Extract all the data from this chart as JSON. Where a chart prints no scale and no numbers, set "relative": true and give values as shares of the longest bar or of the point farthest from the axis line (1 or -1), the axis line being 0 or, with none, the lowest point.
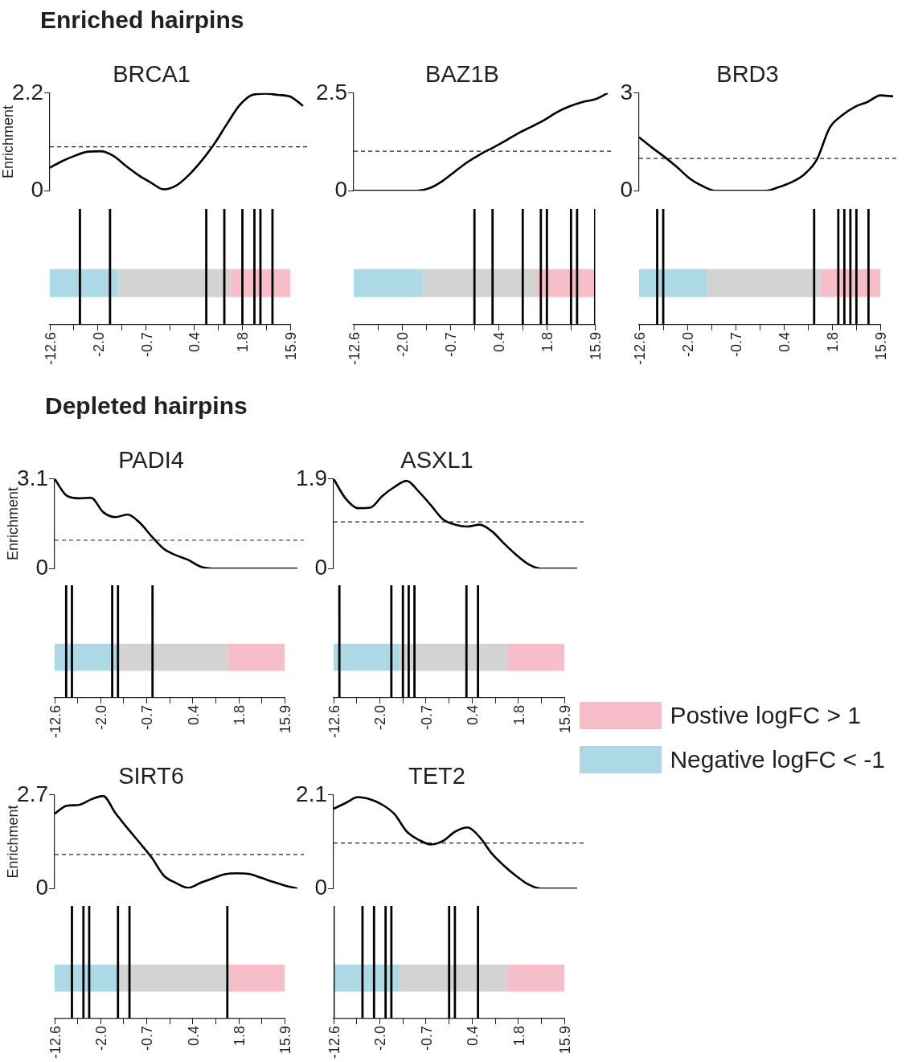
{
  "chart_data": [
    {
      "type": "line",
      "title": "BRCA1",
      "annotations": [
        "Enriched hairpins"
      ],
      "ylabel": "Enrichment",
      "tick_labels": "y",
      "grid": false,
      "legend": false,
      "marker": "none",
      "line_style": "solid",
      "categories": [
        null,
        null,
        null,
        null,
        null,
        null,
        null,
        null,
        null,
        null,
        null,
        null,
        null,
        null,
        null,
        null,
        null,
        null,
        null,
        null,
        null
      ],
      "series": [
        {
          "color": "#000000",
          "values": [
            0.52,
            0.67,
            0.79,
            0.88,
            0.89,
            0.79,
            0.56,
            0.35,
            0.18,
            0.03,
            0.12,
            0.36,
            0.68,
            1.06,
            1.51,
            1.93,
            2.16,
            2.19,
            2.16,
            2.12,
            1.91
          ]
        }
      ],
      "ylim": [
        0,
        2.2
      ],
      "yticks": [
        0,
        2.2
      ],
      "ref_lines": [
        {
          "axis": "y",
          "value": 0.99,
          "line_style": "dashed"
        }
      ]
    },
    {
      "type": "bar",
      "relative": true,
      "tick_labels": "x",
      "legend": false,
      "categories": [
        "-12.6",
        null,
        null,
        null,
        null,
        null,
        null,
        null,
        "-2.0",
        null,
        null,
        null,
        null,
        null,
        null,
        null,
        "-0.7",
        null,
        null,
        null,
        null,
        null,
        null,
        null,
        "0.4",
        null,
        null,
        null,
        null,
        null,
        null,
        null,
        "1.8",
        null,
        null,
        null,
        null,
        null,
        null,
        null,
        "15.9"
      ],
      "series": [
        {
          "color": "#000000",
          "values": [
            null,
            null,
            null,
            null,
            null,
            1,
            null,
            null,
            null,
            null,
            1,
            null,
            null,
            null,
            null,
            null,
            null,
            null,
            null,
            null,
            null,
            null,
            null,
            null,
            null,
            null,
            1,
            null,
            null,
            1,
            null,
            null,
            1,
            null,
            1,
            1,
            null,
            1,
            null,
            null,
            null
          ]
        }
      ]
    },
    {
      "type": "bar",
      "orientation": "horizontal",
      "stacked": true,
      "relative": true,
      "tick_labels": false,
      "legend": false,
      "categories": [
        null
      ],
      "series": [
        {
          "color": "#add8e6",
          "values": [
            0.283
          ]
        },
        {
          "color": "#d3d3d3",
          "values": [
            0.467
          ]
        },
        {
          "color": "#f7bdc9",
          "values": [
            0.25
          ]
        }
      ]
    },
    {
      "type": "line",
      "title": "BAZ1B",
      "tick_labels": "y",
      "grid": false,
      "legend": false,
      "marker": "none",
      "line_style": "solid",
      "categories": [
        null,
        null,
        null,
        null,
        null,
        null,
        null,
        null,
        null,
        null,
        null,
        null,
        null,
        null,
        null,
        null,
        null,
        null,
        null,
        null,
        null
      ],
      "series": [
        {
          "color": "#000000",
          "values": [
            0,
            0,
            0,
            0,
            0,
            0,
            0.07,
            0.25,
            0.5,
            0.74,
            0.94,
            1.11,
            1.29,
            1.48,
            1.64,
            1.81,
            2.01,
            2.16,
            2.27,
            2.34,
            2.5
          ]
        }
      ],
      "ylim": [
        0,
        2.5
      ],
      "yticks": [
        0,
        2.5
      ],
      "ref_lines": [
        {
          "axis": "y",
          "value": 1.01,
          "line_style": "dashed"
        }
      ]
    },
    {
      "type": "bar",
      "relative": true,
      "tick_labels": "x",
      "legend": false,
      "categories": [
        "-12.6",
        null,
        null,
        null,
        null,
        null,
        null,
        null,
        "-2.0",
        null,
        null,
        null,
        null,
        null,
        null,
        null,
        "-0.7",
        null,
        null,
        null,
        null,
        null,
        null,
        null,
        "0.4",
        null,
        null,
        null,
        null,
        null,
        null,
        null,
        "1.8",
        null,
        null,
        null,
        null,
        null,
        null,
        null,
        "15.9"
      ],
      "series": [
        {
          "color": "#000000",
          "values": [
            null,
            null,
            null,
            null,
            null,
            null,
            null,
            null,
            null,
            null,
            null,
            null,
            null,
            null,
            null,
            null,
            null,
            null,
            null,
            null,
            1,
            null,
            null,
            1,
            null,
            null,
            null,
            null,
            1,
            null,
            null,
            1,
            1,
            null,
            null,
            null,
            1,
            1,
            null,
            null,
            1
          ]
        }
      ]
    },
    {
      "type": "bar",
      "orientation": "horizontal",
      "stacked": true,
      "relative": true,
      "tick_labels": false,
      "legend": false,
      "categories": [
        null
      ],
      "series": [
        {
          "color": "#add8e6",
          "values": [
            0.287
          ]
        },
        {
          "color": "#d3d3d3",
          "values": [
            0.472
          ]
        },
        {
          "color": "#f7bdc9",
          "values": [
            0.241
          ]
        }
      ]
    },
    {
      "type": "line",
      "title": "BRD3",
      "tick_labels": "y",
      "grid": false,
      "legend": false,
      "marker": "none",
      "line_style": "solid",
      "categories": [
        null,
        null,
        null,
        null,
        null,
        null,
        null,
        null,
        null,
        null,
        null,
        null,
        null,
        null,
        null,
        null,
        null,
        null,
        null,
        null,
        null
      ],
      "series": [
        {
          "color": "#000000",
          "values": [
            1.64,
            1.33,
            1.04,
            0.72,
            0.37,
            0.14,
            0,
            0,
            0,
            0,
            0,
            0.11,
            0.26,
            0.5,
            0.96,
            1.93,
            2.32,
            2.58,
            2.73,
            2.93,
            2.9
          ]
        }
      ],
      "ylim": [
        0,
        3
      ],
      "yticks": [
        0,
        3
      ],
      "ref_lines": [
        {
          "axis": "y",
          "value": 0.99,
          "line_style": "dashed"
        }
      ]
    },
    {
      "type": "bar",
      "relative": true,
      "tick_labels": "x",
      "legend": false,
      "categories": [
        "-12.6",
        null,
        null,
        null,
        null,
        null,
        null,
        null,
        "-2.0",
        null,
        null,
        null,
        null,
        null,
        null,
        null,
        "-0.7",
        null,
        null,
        null,
        null,
        null,
        null,
        null,
        "0.4",
        null,
        null,
        null,
        null,
        null,
        null,
        null,
        "1.8",
        null,
        null,
        null,
        null,
        null,
        null,
        null,
        "15.9"
      ],
      "series": [
        {
          "color": "#000000",
          "values": [
            null,
            null,
            null,
            1,
            1,
            null,
            null,
            null,
            null,
            null,
            null,
            null,
            null,
            null,
            null,
            null,
            null,
            null,
            null,
            null,
            null,
            null,
            null,
            null,
            null,
            null,
            null,
            null,
            null,
            1,
            null,
            null,
            null,
            1,
            1,
            1,
            1,
            null,
            1,
            null,
            null
          ]
        }
      ]
    },
    {
      "type": "bar",
      "orientation": "horizontal",
      "stacked": true,
      "relative": true,
      "tick_labels": false,
      "legend": false,
      "categories": [
        null
      ],
      "series": [
        {
          "color": "#add8e6",
          "values": [
            0.284
          ]
        },
        {
          "color": "#d3d3d3",
          "values": [
            0.468
          ]
        },
        {
          "color": "#f7bdc9",
          "values": [
            0.248
          ]
        }
      ]
    },
    {
      "type": "line",
      "title": "PADI4",
      "annotations": [
        "Depleted hairpins"
      ],
      "ylabel": "Enrichment",
      "tick_labels": "y",
      "grid": false,
      "legend": false,
      "marker": "none",
      "line_style": "solid",
      "categories": [
        null,
        null,
        null,
        null,
        null,
        null,
        null,
        null,
        null,
        null,
        null,
        null,
        null,
        null,
        null,
        null,
        null,
        null,
        null,
        null,
        null
      ],
      "series": [
        {
          "color": "#000000",
          "values": [
            3.1,
            2.52,
            2.43,
            2.45,
            1.95,
            1.78,
            1.87,
            1.59,
            1.11,
            0.68,
            0.46,
            0.3,
            0.07,
            0,
            0,
            0,
            0,
            0,
            0,
            0,
            0
          ]
        }
      ],
      "ylim": [
        0,
        3.1
      ],
      "yticks": [
        0,
        3.1
      ],
      "ref_lines": [
        {
          "axis": "y",
          "value": 0.98,
          "line_style": "dashed"
        }
      ]
    },
    {
      "type": "bar",
      "relative": true,
      "tick_labels": "x",
      "legend": false,
      "categories": [
        "-12.6",
        null,
        null,
        null,
        null,
        null,
        null,
        null,
        "-2.0",
        null,
        null,
        null,
        null,
        null,
        null,
        null,
        "-0.7",
        null,
        null,
        null,
        null,
        null,
        null,
        null,
        "0.4",
        null,
        null,
        null,
        null,
        null,
        null,
        null,
        "1.8",
        null,
        null,
        null,
        null,
        null,
        null,
        null,
        "15.9"
      ],
      "series": [
        {
          "color": "#000000",
          "values": [
            null,
            null,
            1,
            1,
            null,
            null,
            null,
            null,
            null,
            null,
            1,
            1,
            null,
            null,
            null,
            null,
            null,
            1,
            null,
            null,
            null,
            null,
            null,
            null,
            null,
            null,
            null,
            null,
            null,
            null,
            null,
            null,
            null,
            null,
            null,
            null,
            null,
            null,
            null,
            null,
            null
          ]
        }
      ]
    },
    {
      "type": "bar",
      "orientation": "horizontal",
      "stacked": true,
      "relative": true,
      "tick_labels": false,
      "legend": false,
      "categories": [
        null
      ],
      "series": [
        {
          "color": "#add8e6",
          "values": [
            0.28
          ]
        },
        {
          "color": "#d3d3d3",
          "values": [
            0.472
          ]
        },
        {
          "color": "#f7bdc9",
          "values": [
            0.248
          ]
        }
      ]
    },
    {
      "type": "line",
      "title": "ASXL1",
      "tick_labels": "y",
      "grid": false,
      "legend": false,
      "marker": "none",
      "line_style": "solid",
      "categories": [
        null,
        null,
        null,
        null,
        null,
        null,
        null,
        null,
        null,
        null,
        null,
        null,
        null,
        null,
        null,
        null,
        null,
        null,
        null,
        null,
        null
      ],
      "series": [
        {
          "color": "#000000",
          "values": [
            1.9,
            1.48,
            1.28,
            1.29,
            1.54,
            1.73,
            1.86,
            1.63,
            1.34,
            1.04,
            0.93,
            0.89,
            0.93,
            0.79,
            0.53,
            0.29,
            0.09,
            0,
            0,
            0,
            0
          ]
        }
      ],
      "ylim": [
        0,
        1.9
      ],
      "yticks": [
        0,
        1.9
      ],
      "ref_lines": [
        {
          "axis": "y",
          "value": 0.99,
          "line_style": "dashed"
        }
      ]
    },
    {
      "type": "bar",
      "relative": true,
      "tick_labels": "x",
      "legend": false,
      "categories": [
        "-12.6",
        null,
        null,
        null,
        null,
        null,
        null,
        null,
        "-2.0",
        null,
        null,
        null,
        null,
        null,
        null,
        null,
        "-0.7",
        null,
        null,
        null,
        null,
        null,
        null,
        null,
        "0.4",
        null,
        null,
        null,
        null,
        null,
        null,
        null,
        "1.8",
        null,
        null,
        null,
        null,
        null,
        null,
        null,
        "15.9"
      ],
      "series": [
        {
          "color": "#000000",
          "values": [
            null,
            1,
            null,
            null,
            null,
            null,
            null,
            null,
            null,
            null,
            1,
            null,
            1,
            1,
            1,
            null,
            null,
            null,
            null,
            null,
            null,
            null,
            null,
            1,
            null,
            1,
            null,
            null,
            null,
            null,
            null,
            null,
            null,
            null,
            null,
            null,
            null,
            null,
            null,
            null,
            null
          ]
        }
      ]
    },
    {
      "type": "bar",
      "orientation": "horizontal",
      "stacked": true,
      "relative": true,
      "tick_labels": false,
      "legend": "right",
      "categories": [
        null
      ],
      "series": [
        {
          "name": "Negative logFC < -1",
          "color": "#add8e6",
          "values": [
            0.287
          ]
        },
        {
          "color": "#d3d3d3",
          "values": [
            0.465
          ]
        },
        {
          "name": "Postive logFC > 1",
          "color": "#f7bdc9",
          "values": [
            0.248
          ]
        }
      ]
    },
    {
      "type": "line",
      "title": "SIRT6",
      "ylabel": "Enrichment",
      "tick_labels": "y",
      "grid": false,
      "legend": false,
      "marker": "none",
      "line_style": "solid",
      "categories": [
        null,
        null,
        null,
        null,
        null,
        null,
        null,
        null,
        null,
        null,
        null,
        null,
        null,
        null,
        null,
        null,
        null,
        null,
        null,
        null,
        null
      ],
      "series": [
        {
          "color": "#000000",
          "values": [
            2.16,
            2.39,
            2.41,
            2.57,
            2.67,
            2.18,
            1.74,
            1.32,
            0.89,
            0.37,
            0.16,
            0.02,
            0.16,
            0.29,
            0.41,
            0.44,
            0.42,
            0.31,
            0.19,
            0.08,
            0
          ]
        }
      ],
      "ylim": [
        0,
        2.7
      ],
      "yticks": [
        0,
        2.7
      ],
      "ref_lines": [
        {
          "axis": "y",
          "value": 0.98,
          "line_style": "dashed"
        }
      ]
    },
    {
      "type": "bar",
      "relative": true,
      "tick_labels": "x",
      "legend": false,
      "categories": [
        "-12.6",
        null,
        null,
        null,
        null,
        null,
        null,
        null,
        "-2.0",
        null,
        null,
        null,
        null,
        null,
        null,
        null,
        "-0.7",
        null,
        null,
        null,
        null,
        null,
        null,
        null,
        "0.4",
        null,
        null,
        null,
        null,
        null,
        null,
        null,
        "1.8",
        null,
        null,
        null,
        null,
        null,
        null,
        null,
        "15.9"
      ],
      "series": [
        {
          "color": "#000000",
          "values": [
            null,
            null,
            null,
            1,
            null,
            1,
            1,
            null,
            null,
            null,
            null,
            1,
            null,
            1,
            null,
            null,
            null,
            null,
            null,
            null,
            null,
            null,
            null,
            null,
            null,
            null,
            null,
            null,
            null,
            null,
            1,
            null,
            null,
            null,
            null,
            null,
            null,
            null,
            null,
            null,
            null
          ]
        }
      ]
    },
    {
      "type": "bar",
      "orientation": "horizontal",
      "stacked": true,
      "relative": true,
      "tick_labels": false,
      "legend": false,
      "categories": [
        null
      ],
      "series": [
        {
          "color": "#add8e6",
          "values": [
            0.28
          ]
        },
        {
          "color": "#d3d3d3",
          "values": [
            0.477
          ]
        },
        {
          "color": "#f7bdc9",
          "values": [
            0.243
          ]
        }
      ]
    },
    {
      "type": "line",
      "title": "TET2",
      "tick_labels": "y",
      "grid": false,
      "legend": false,
      "marker": "none",
      "line_style": "solid",
      "categories": [
        null,
        null,
        null,
        null,
        null,
        null,
        null,
        null,
        null,
        null,
        null,
        null,
        null,
        null,
        null,
        null,
        null,
        null,
        null,
        null,
        null
      ],
      "series": [
        {
          "color": "#000000",
          "values": [
            1.79,
            1.92,
            2.05,
            2.0,
            1.88,
            1.67,
            1.28,
            1.09,
            0.99,
            1.07,
            1.28,
            1.37,
            1.15,
            0.78,
            0.51,
            0.28,
            0.09,
            0,
            0,
            0,
            0
          ]
        }
      ],
      "ylim": [
        0,
        2.1
      ],
      "yticks": [
        0,
        2.1
      ],
      "ref_lines": [
        {
          "axis": "y",
          "value": 1.02,
          "line_style": "dashed"
        }
      ]
    },
    {
      "type": "bar",
      "relative": true,
      "tick_labels": "x",
      "legend": false,
      "categories": [
        "-12.6",
        null,
        null,
        null,
        null,
        null,
        null,
        null,
        "-2.0",
        null,
        null,
        null,
        null,
        null,
        null,
        null,
        "-0.7",
        null,
        null,
        null,
        null,
        null,
        null,
        null,
        "0.4",
        null,
        null,
        null,
        null,
        null,
        null,
        null,
        "1.8",
        null,
        null,
        null,
        null,
        null,
        null,
        null,
        "15.9"
      ],
      "series": [
        {
          "color": "#000000",
          "values": [
            1,
            null,
            null,
            null,
            null,
            1,
            null,
            1,
            null,
            1,
            1,
            null,
            null,
            null,
            null,
            null,
            null,
            null,
            null,
            null,
            1,
            1,
            null,
            null,
            null,
            1,
            null,
            null,
            null,
            null,
            null,
            null,
            null,
            null,
            null,
            null,
            null,
            null,
            null,
            null,
            null
          ]
        }
      ]
    },
    {
      "type": "bar",
      "orientation": "horizontal",
      "stacked": true,
      "relative": true,
      "tick_labels": false,
      "legend": false,
      "categories": [
        null
      ],
      "series": [
        {
          "color": "#add8e6",
          "values": [
            0.285
          ]
        },
        {
          "color": "#d3d3d3",
          "values": [
            0.467
          ]
        },
        {
          "color": "#f7bdc9",
          "values": [
            0.248
          ]
        }
      ]
    }
  ]
}
